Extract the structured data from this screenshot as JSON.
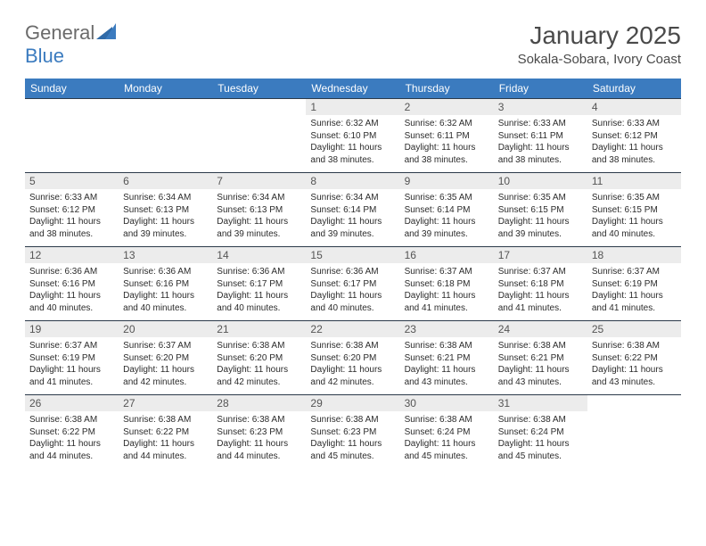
{
  "brand": {
    "part1": "General",
    "part2": "Blue"
  },
  "title": "January 2025",
  "location": "Sokala-Sobara, Ivory Coast",
  "colors": {
    "header_bg": "#3b7bbf",
    "header_fg": "#ffffff",
    "daynum_bg": "#ececec",
    "daynum_fg": "#555555",
    "cell_border": "#2b3a4a",
    "text": "#2b2b2b",
    "title_color": "#4a4a4a"
  },
  "fonts": {
    "title_size": 28,
    "location_size": 15,
    "head_size": 12,
    "body_size": 10
  },
  "day_names": [
    "Sunday",
    "Monday",
    "Tuesday",
    "Wednesday",
    "Thursday",
    "Friday",
    "Saturday"
  ],
  "weeks": [
    [
      {
        "n": "",
        "sr": "",
        "ss": "",
        "dl": "",
        "empty": true
      },
      {
        "n": "",
        "sr": "",
        "ss": "",
        "dl": "",
        "empty": true
      },
      {
        "n": "",
        "sr": "",
        "ss": "",
        "dl": "",
        "empty": true
      },
      {
        "n": "1",
        "sr": "Sunrise: 6:32 AM",
        "ss": "Sunset: 6:10 PM",
        "dl": "Daylight: 11 hours and 38 minutes."
      },
      {
        "n": "2",
        "sr": "Sunrise: 6:32 AM",
        "ss": "Sunset: 6:11 PM",
        "dl": "Daylight: 11 hours and 38 minutes."
      },
      {
        "n": "3",
        "sr": "Sunrise: 6:33 AM",
        "ss": "Sunset: 6:11 PM",
        "dl": "Daylight: 11 hours and 38 minutes."
      },
      {
        "n": "4",
        "sr": "Sunrise: 6:33 AM",
        "ss": "Sunset: 6:12 PM",
        "dl": "Daylight: 11 hours and 38 minutes."
      }
    ],
    [
      {
        "n": "5",
        "sr": "Sunrise: 6:33 AM",
        "ss": "Sunset: 6:12 PM",
        "dl": "Daylight: 11 hours and 38 minutes."
      },
      {
        "n": "6",
        "sr": "Sunrise: 6:34 AM",
        "ss": "Sunset: 6:13 PM",
        "dl": "Daylight: 11 hours and 39 minutes."
      },
      {
        "n": "7",
        "sr": "Sunrise: 6:34 AM",
        "ss": "Sunset: 6:13 PM",
        "dl": "Daylight: 11 hours and 39 minutes."
      },
      {
        "n": "8",
        "sr": "Sunrise: 6:34 AM",
        "ss": "Sunset: 6:14 PM",
        "dl": "Daylight: 11 hours and 39 minutes."
      },
      {
        "n": "9",
        "sr": "Sunrise: 6:35 AM",
        "ss": "Sunset: 6:14 PM",
        "dl": "Daylight: 11 hours and 39 minutes."
      },
      {
        "n": "10",
        "sr": "Sunrise: 6:35 AM",
        "ss": "Sunset: 6:15 PM",
        "dl": "Daylight: 11 hours and 39 minutes."
      },
      {
        "n": "11",
        "sr": "Sunrise: 6:35 AM",
        "ss": "Sunset: 6:15 PM",
        "dl": "Daylight: 11 hours and 40 minutes."
      }
    ],
    [
      {
        "n": "12",
        "sr": "Sunrise: 6:36 AM",
        "ss": "Sunset: 6:16 PM",
        "dl": "Daylight: 11 hours and 40 minutes."
      },
      {
        "n": "13",
        "sr": "Sunrise: 6:36 AM",
        "ss": "Sunset: 6:16 PM",
        "dl": "Daylight: 11 hours and 40 minutes."
      },
      {
        "n": "14",
        "sr": "Sunrise: 6:36 AM",
        "ss": "Sunset: 6:17 PM",
        "dl": "Daylight: 11 hours and 40 minutes."
      },
      {
        "n": "15",
        "sr": "Sunrise: 6:36 AM",
        "ss": "Sunset: 6:17 PM",
        "dl": "Daylight: 11 hours and 40 minutes."
      },
      {
        "n": "16",
        "sr": "Sunrise: 6:37 AM",
        "ss": "Sunset: 6:18 PM",
        "dl": "Daylight: 11 hours and 41 minutes."
      },
      {
        "n": "17",
        "sr": "Sunrise: 6:37 AM",
        "ss": "Sunset: 6:18 PM",
        "dl": "Daylight: 11 hours and 41 minutes."
      },
      {
        "n": "18",
        "sr": "Sunrise: 6:37 AM",
        "ss": "Sunset: 6:19 PM",
        "dl": "Daylight: 11 hours and 41 minutes."
      }
    ],
    [
      {
        "n": "19",
        "sr": "Sunrise: 6:37 AM",
        "ss": "Sunset: 6:19 PM",
        "dl": "Daylight: 11 hours and 41 minutes."
      },
      {
        "n": "20",
        "sr": "Sunrise: 6:37 AM",
        "ss": "Sunset: 6:20 PM",
        "dl": "Daylight: 11 hours and 42 minutes."
      },
      {
        "n": "21",
        "sr": "Sunrise: 6:38 AM",
        "ss": "Sunset: 6:20 PM",
        "dl": "Daylight: 11 hours and 42 minutes."
      },
      {
        "n": "22",
        "sr": "Sunrise: 6:38 AM",
        "ss": "Sunset: 6:20 PM",
        "dl": "Daylight: 11 hours and 42 minutes."
      },
      {
        "n": "23",
        "sr": "Sunrise: 6:38 AM",
        "ss": "Sunset: 6:21 PM",
        "dl": "Daylight: 11 hours and 43 minutes."
      },
      {
        "n": "24",
        "sr": "Sunrise: 6:38 AM",
        "ss": "Sunset: 6:21 PM",
        "dl": "Daylight: 11 hours and 43 minutes."
      },
      {
        "n": "25",
        "sr": "Sunrise: 6:38 AM",
        "ss": "Sunset: 6:22 PM",
        "dl": "Daylight: 11 hours and 43 minutes."
      }
    ],
    [
      {
        "n": "26",
        "sr": "Sunrise: 6:38 AM",
        "ss": "Sunset: 6:22 PM",
        "dl": "Daylight: 11 hours and 44 minutes."
      },
      {
        "n": "27",
        "sr": "Sunrise: 6:38 AM",
        "ss": "Sunset: 6:22 PM",
        "dl": "Daylight: 11 hours and 44 minutes."
      },
      {
        "n": "28",
        "sr": "Sunrise: 6:38 AM",
        "ss": "Sunset: 6:23 PM",
        "dl": "Daylight: 11 hours and 44 minutes."
      },
      {
        "n": "29",
        "sr": "Sunrise: 6:38 AM",
        "ss": "Sunset: 6:23 PM",
        "dl": "Daylight: 11 hours and 45 minutes."
      },
      {
        "n": "30",
        "sr": "Sunrise: 6:38 AM",
        "ss": "Sunset: 6:24 PM",
        "dl": "Daylight: 11 hours and 45 minutes."
      },
      {
        "n": "31",
        "sr": "Sunrise: 6:38 AM",
        "ss": "Sunset: 6:24 PM",
        "dl": "Daylight: 11 hours and 45 minutes."
      },
      {
        "n": "",
        "sr": "",
        "ss": "",
        "dl": "",
        "empty": true
      }
    ]
  ]
}
